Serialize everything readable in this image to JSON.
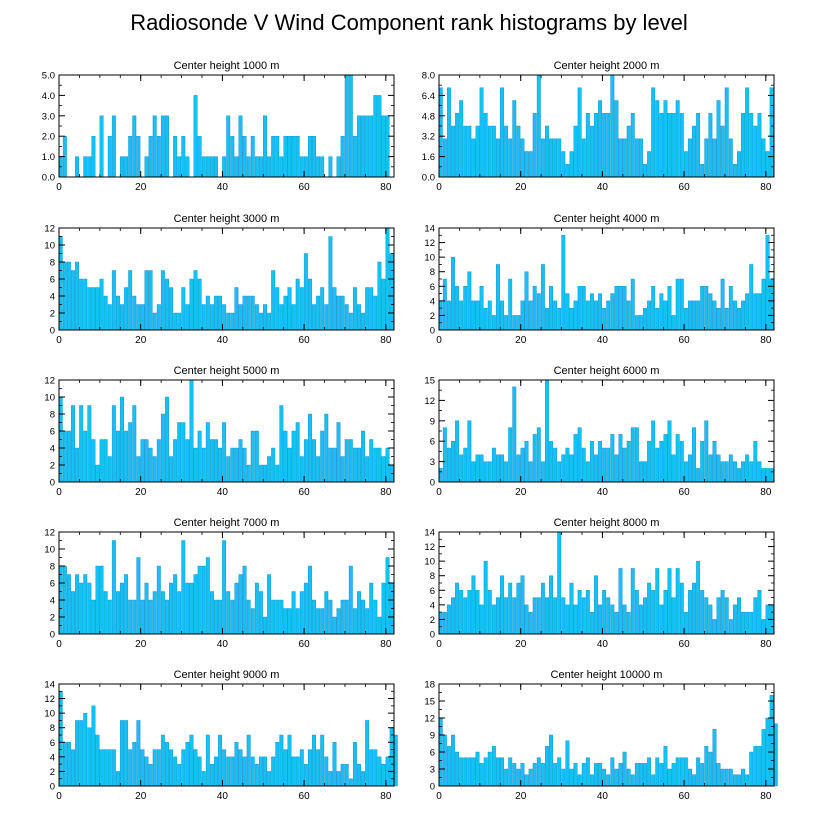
{
  "title": "Radiosonde V Wind Component rank histograms by level",
  "colors": {
    "bar_fill": "#14C0F4",
    "bar_stroke": "#0A8CC8",
    "axis": "#000000"
  },
  "chart_data": [
    {
      "type": "bar",
      "title": "Center height 1000 m",
      "ylim": [
        0,
        5
      ],
      "yticks": [
        0,
        1,
        2,
        3,
        4,
        5
      ],
      "yticklabels": [
        "0.0",
        "1.0",
        "2.0",
        "3.0",
        "4.0",
        "5.0"
      ],
      "xlim": [
        0,
        82
      ],
      "xticks": [
        0,
        20,
        40,
        60,
        80
      ],
      "xticklabels": [
        "0",
        "20",
        "40",
        "60",
        "80"
      ],
      "values": [
        1,
        2,
        0,
        0,
        1,
        0,
        1,
        1,
        2,
        0,
        3,
        0,
        2,
        3,
        0,
        1,
        1,
        2,
        3,
        2,
        0,
        1,
        2,
        3,
        2,
        3,
        3,
        0,
        2,
        1,
        2,
        1,
        0,
        4,
        2,
        1,
        1,
        1,
        1,
        0,
        1,
        3,
        2,
        1,
        3,
        2,
        1,
        2,
        1,
        1,
        3,
        1,
        2,
        2,
        1,
        2,
        2,
        2,
        2,
        1,
        1,
        2,
        2,
        1,
        1,
        0,
        1,
        0,
        1,
        2,
        5,
        5,
        2,
        3,
        3,
        3,
        3,
        4,
        4,
        3,
        3
      ]
    },
    {
      "type": "bar",
      "title": "Center height 2000 m",
      "ylim": [
        0,
        8
      ],
      "yticks": [
        0,
        1.6,
        3.2,
        4.8,
        6.4,
        8
      ],
      "yticklabels": [
        "0.0",
        "1.6",
        "3.2",
        "4.8",
        "6.4",
        "8.0"
      ],
      "xlim": [
        0,
        82
      ],
      "xticks": [
        0,
        20,
        40,
        60,
        80
      ],
      "xticklabels": [
        "0",
        "20",
        "40",
        "60",
        "80"
      ],
      "values": [
        7,
        3,
        7,
        4,
        5,
        6,
        4,
        4,
        3,
        4,
        7,
        5,
        4,
        4,
        3,
        7,
        4,
        3,
        6,
        4,
        3,
        2,
        2,
        5,
        8,
        3,
        4,
        3,
        3,
        3,
        2,
        1,
        2,
        4,
        7,
        3,
        5,
        4,
        5,
        6,
        5,
        5,
        8,
        6,
        3,
        3,
        4,
        5,
        3,
        3,
        1,
        2,
        7,
        6,
        5,
        6,
        5,
        5,
        6,
        5,
        2,
        3,
        4,
        5,
        1,
        3,
        5,
        3,
        6,
        4,
        7,
        3,
        1,
        2,
        5,
        7,
        5,
        4,
        5,
        3,
        2,
        7
      ]
    },
    {
      "type": "bar",
      "title": "Center height 3000 m",
      "ylim": [
        0,
        12
      ],
      "yticks": [
        0,
        2,
        4,
        6,
        8,
        10,
        12
      ],
      "yticklabels": [
        "0",
        "2",
        "4",
        "6",
        "8",
        "10",
        "12"
      ],
      "xlim": [
        0,
        82
      ],
      "xticks": [
        0,
        20,
        40,
        60,
        80
      ],
      "xticklabels": [
        "0",
        "20",
        "40",
        "60",
        "80"
      ],
      "values": [
        11,
        8,
        8,
        7,
        8,
        6,
        6,
        5,
        5,
        5,
        6,
        4,
        3,
        7,
        4,
        3,
        5,
        7,
        4,
        3,
        3,
        7,
        7,
        2,
        3,
        7,
        6,
        5,
        2,
        2,
        5,
        3,
        6,
        7,
        6,
        3,
        4,
        3,
        4,
        4,
        3,
        2,
        2,
        5,
        3,
        4,
        4,
        4,
        3,
        2,
        3,
        2,
        7,
        5,
        3,
        4,
        5,
        3,
        6,
        5,
        9,
        6,
        3,
        4,
        5,
        3,
        11,
        5,
        4,
        4,
        3,
        2,
        5,
        3,
        2,
        5,
        5,
        4,
        8,
        6,
        12,
        9
      ]
    },
    {
      "type": "bar",
      "title": "Center height 4000 m",
      "ylim": [
        0,
        14
      ],
      "yticks": [
        0,
        2,
        4,
        6,
        8,
        10,
        12,
        14
      ],
      "yticklabels": [
        "0",
        "2",
        "4",
        "6",
        "8",
        "10",
        "12",
        "14"
      ],
      "xlim": [
        0,
        82
      ],
      "xticks": [
        0,
        20,
        40,
        60,
        80
      ],
      "xticklabels": [
        "0",
        "20",
        "40",
        "60",
        "80"
      ],
      "values": [
        4,
        7,
        4,
        10,
        6,
        4,
        6,
        8,
        4,
        4,
        6,
        3,
        4,
        2,
        9,
        4,
        2,
        7,
        2,
        2,
        4,
        8,
        4,
        6,
        5,
        9,
        3,
        6,
        4,
        3,
        13,
        5,
        3,
        4,
        6,
        6,
        4,
        5,
        4,
        5,
        3,
        4,
        5,
        6,
        6,
        6,
        4,
        7,
        2,
        2,
        3,
        4,
        6,
        3,
        5,
        4,
        6,
        2,
        7,
        7,
        3,
        4,
        4,
        4,
        6,
        6,
        5,
        4,
        3,
        7,
        3,
        6,
        4,
        3,
        4,
        5,
        9,
        5,
        5,
        7,
        13,
        7
      ]
    },
    {
      "type": "bar",
      "title": "Center height 5000 m",
      "ylim": [
        0,
        12
      ],
      "yticks": [
        0,
        2,
        4,
        6,
        8,
        10,
        12
      ],
      "yticklabels": [
        "0",
        "2",
        "4",
        "6",
        "8",
        "10",
        "12"
      ],
      "xlim": [
        0,
        82
      ],
      "xticks": [
        0,
        20,
        40,
        60,
        80
      ],
      "xticklabels": [
        "0",
        "20",
        "40",
        "60",
        "80"
      ],
      "values": [
        10,
        6,
        6,
        9,
        4,
        9,
        6,
        9,
        5,
        2,
        5,
        5,
        3,
        9,
        6,
        10,
        6,
        7,
        9,
        3,
        5,
        5,
        4,
        3,
        5,
        8,
        10,
        3,
        5,
        7,
        7,
        5,
        12,
        4,
        6,
        4,
        7,
        5,
        5,
        4,
        7,
        3,
        4,
        4,
        5,
        4,
        2,
        6,
        6,
        2,
        2,
        3,
        4,
        2,
        9,
        6,
        4,
        6,
        7,
        3,
        5,
        8,
        5,
        3,
        6,
        8,
        4,
        4,
        7,
        3,
        5,
        5,
        4,
        4,
        6,
        3,
        5,
        4,
        4,
        3,
        4,
        2
      ]
    },
    {
      "type": "bar",
      "title": "Center height 6000 m",
      "ylim": [
        0,
        15
      ],
      "yticks": [
        0,
        3,
        6,
        9,
        12,
        15
      ],
      "yticklabels": [
        "0",
        "3",
        "6",
        "9",
        "12",
        "15"
      ],
      "xlim": [
        0,
        82
      ],
      "xticks": [
        0,
        20,
        40,
        60,
        80
      ],
      "xticklabels": [
        "0",
        "20",
        "40",
        "60",
        "80"
      ],
      "values": [
        2,
        8,
        5,
        6,
        9,
        4,
        5,
        9,
        3,
        4,
        4,
        3,
        3,
        5,
        4,
        4,
        3,
        8,
        14,
        4,
        5,
        6,
        3,
        7,
        8,
        3,
        15,
        6,
        5,
        3,
        4,
        5,
        4,
        7,
        8,
        5,
        3,
        6,
        4,
        6,
        5,
        5,
        7,
        4,
        7,
        5,
        6,
        8,
        8,
        3,
        3,
        6,
        9,
        5,
        6,
        7,
        9,
        4,
        7,
        6,
        3,
        4,
        8,
        2,
        6,
        9,
        4,
        6,
        4,
        3,
        3,
        4,
        3,
        2,
        3,
        4,
        3,
        6,
        3,
        2,
        2,
        2
      ]
    },
    {
      "type": "bar",
      "title": "Center height 7000 m",
      "ylim": [
        0,
        12
      ],
      "yticks": [
        0,
        2,
        4,
        6,
        8,
        10,
        12
      ],
      "yticklabels": [
        "0",
        "2",
        "4",
        "6",
        "8",
        "10",
        "12"
      ],
      "xlim": [
        0,
        82
      ],
      "xticks": [
        0,
        20,
        40,
        60,
        80
      ],
      "xticklabels": [
        "0",
        "20",
        "40",
        "60",
        "80"
      ],
      "values": [
        8,
        8,
        7,
        5,
        7,
        6,
        7,
        6,
        4,
        8,
        8,
        5,
        4,
        11,
        5,
        6,
        7,
        4,
        4,
        9,
        4,
        6,
        4,
        5,
        8,
        5,
        4,
        6,
        7,
        5,
        11,
        6,
        6,
        7,
        8,
        8,
        9,
        5,
        4,
        4,
        11,
        5,
        4,
        6,
        7,
        8,
        4,
        3,
        6,
        5,
        2,
        7,
        4,
        4,
        4,
        3,
        3,
        5,
        3,
        5,
        6,
        8,
        4,
        3,
        3,
        5,
        4,
        2,
        3,
        4,
        4,
        8,
        3,
        5,
        4,
        3,
        6,
        4,
        2,
        6,
        9,
        6
      ]
    },
    {
      "type": "bar",
      "title": "Center height 8000 m",
      "ylim": [
        0,
        14
      ],
      "yticks": [
        0,
        2,
        4,
        6,
        8,
        10,
        12,
        14
      ],
      "yticklabels": [
        "0",
        "2",
        "4",
        "6",
        "8",
        "10",
        "12",
        "14"
      ],
      "xlim": [
        0,
        82
      ],
      "xticks": [
        0,
        20,
        40,
        60,
        80
      ],
      "xticklabels": [
        "0",
        "20",
        "40",
        "60",
        "80"
      ],
      "values": [
        3,
        3,
        4,
        5,
        7,
        6,
        5,
        6,
        8,
        6,
        4,
        10,
        6,
        4,
        5,
        8,
        5,
        7,
        5,
        7,
        8,
        4,
        3,
        5,
        5,
        7,
        5,
        8,
        5,
        14,
        5,
        4,
        7,
        4,
        6,
        5,
        6,
        3,
        8,
        4,
        6,
        5,
        4,
        3,
        9,
        4,
        3,
        9,
        6,
        4,
        5,
        7,
        6,
        9,
        4,
        6,
        9,
        5,
        9,
        7,
        3,
        6,
        7,
        10,
        6,
        5,
        4,
        2,
        5,
        6,
        5,
        2,
        4,
        5,
        3,
        3,
        3,
        5,
        6,
        2,
        4,
        4
      ]
    },
    {
      "type": "bar",
      "title": "Center height 9000 m",
      "ylim": [
        0,
        14
      ],
      "yticks": [
        0,
        2,
        4,
        6,
        8,
        10,
        12,
        14
      ],
      "yticklabels": [
        "0",
        "2",
        "4",
        "6",
        "8",
        "10",
        "12",
        "14"
      ],
      "xlim": [
        0,
        82
      ],
      "xticks": [
        0,
        20,
        40,
        60,
        80
      ],
      "xticklabels": [
        "0",
        "20",
        "40",
        "60",
        "80"
      ],
      "values": [
        13,
        6,
        6,
        5,
        9,
        9,
        10,
        8,
        11,
        7,
        5,
        5,
        5,
        5,
        2,
        9,
        9,
        5,
        6,
        9,
        5,
        4,
        3,
        5,
        5,
        7,
        6,
        5,
        4,
        3,
        5,
        6,
        7,
        5,
        4,
        2,
        7,
        3,
        4,
        7,
        5,
        4,
        4,
        6,
        5,
        4,
        7,
        4,
        3,
        4,
        4,
        2,
        4,
        6,
        7,
        5,
        7,
        4,
        4,
        5,
        3,
        5,
        7,
        5,
        7,
        4,
        2,
        6,
        2,
        3,
        3,
        1,
        6,
        3,
        2,
        9,
        5,
        5,
        4,
        3,
        4,
        8,
        7
      ]
    },
    {
      "type": "bar",
      "title": "Center height 10000 m",
      "ylim": [
        0,
        18
      ],
      "yticks": [
        0,
        3,
        6,
        9,
        12,
        15,
        18
      ],
      "yticklabels": [
        "0",
        "3",
        "6",
        "9",
        "12",
        "15",
        "18"
      ],
      "xlim": [
        0,
        82
      ],
      "xticks": [
        0,
        20,
        40,
        60,
        80
      ],
      "xticklabels": [
        "0",
        "20",
        "40",
        "60",
        "80"
      ],
      "values": [
        12,
        9,
        7,
        9,
        6,
        5,
        5,
        5,
        5,
        6,
        4,
        5,
        6,
        7,
        5,
        5,
        3,
        5,
        4,
        3,
        4,
        2,
        3,
        4,
        5,
        4,
        7,
        9,
        4,
        5,
        3,
        8,
        3,
        4,
        2,
        4,
        5,
        2,
        4,
        4,
        3,
        2,
        5,
        3,
        4,
        6,
        3,
        2,
        4,
        4,
        4,
        5,
        2,
        5,
        4,
        7,
        3,
        4,
        5,
        5,
        5,
        3,
        2,
        5,
        4,
        7,
        6,
        10,
        4,
        3,
        3,
        3,
        2,
        2,
        3,
        2,
        6,
        7,
        7,
        10,
        12,
        16,
        11
      ]
    }
  ]
}
